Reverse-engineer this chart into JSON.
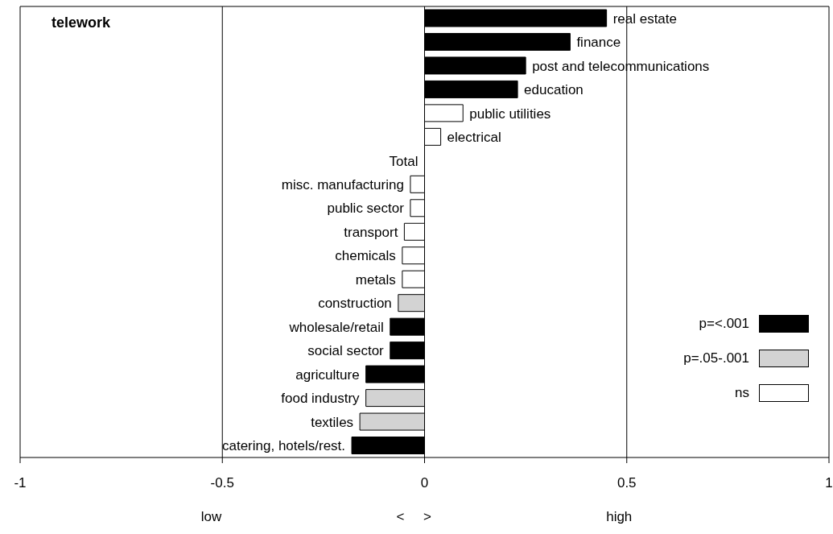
{
  "chart_data": {
    "type": "bar",
    "orientation": "horizontal",
    "stacked": true,
    "title": "telework",
    "xlabel": "low                                              <     >                                              high",
    "categories": [
      "real estate",
      "finance",
      "post and telecommunications",
      "education",
      "public utilities",
      "electrical",
      "Total",
      "misc. manufacturing",
      "public sector",
      "transport",
      "chemicals",
      "metals",
      "construction",
      "wholesale/retail",
      "social sector",
      "agriculture",
      "food industry",
      "textiles",
      "catering, hotels/rest."
    ],
    "series": [
      {
        "name": "p=<.001",
        "color": "#000000",
        "values": [
          0.45,
          0.36,
          0.25,
          0.23,
          null,
          null,
          null,
          null,
          null,
          null,
          null,
          null,
          null,
          -0.085,
          -0.085,
          -0.145,
          null,
          null,
          -0.18
        ]
      },
      {
        "name": "p=.05-.001",
        "color": "#d3d3d3",
        "values": [
          null,
          null,
          null,
          null,
          null,
          null,
          null,
          null,
          null,
          null,
          null,
          null,
          -0.065,
          null,
          null,
          null,
          -0.145,
          -0.16,
          null
        ]
      },
      {
        "name": "ns",
        "color": "#ffffff",
        "values": [
          null,
          null,
          null,
          null,
          0.095,
          0.04,
          0,
          -0.035,
          -0.035,
          -0.05,
          -0.055,
          -0.055,
          null,
          null,
          null,
          null,
          null,
          null,
          null
        ]
      }
    ],
    "xlim": [
      -1,
      1
    ],
    "xticks": [
      -1,
      -0.5,
      0,
      0.5,
      1
    ],
    "grid": "x",
    "legend": "right"
  }
}
